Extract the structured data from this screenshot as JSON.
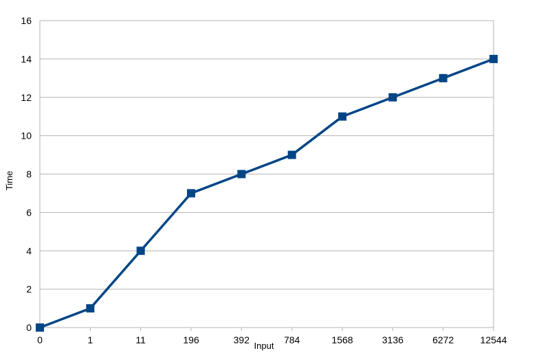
{
  "chart_data": {
    "type": "line",
    "title": "",
    "xlabel": "Input",
    "ylabel": "Time",
    "categories": [
      "0",
      "1",
      "11",
      "196",
      "392",
      "784",
      "1568",
      "3136",
      "6272",
      "12544"
    ],
    "series": [
      {
        "values": [
          0,
          1,
          4,
          7,
          8,
          9,
          11,
          12,
          13,
          14
        ]
      }
    ],
    "ylim": [
      0,
      16
    ],
    "yticks": [
      "0",
      "2",
      "4",
      "6",
      "8",
      "10",
      "12",
      "14",
      "16"
    ],
    "grid": "horizontal",
    "legend": "none",
    "marker": "square",
    "colors": {
      "series": "#004586",
      "grid": "#b3b3b3",
      "axis": "#b3b3b3"
    }
  }
}
